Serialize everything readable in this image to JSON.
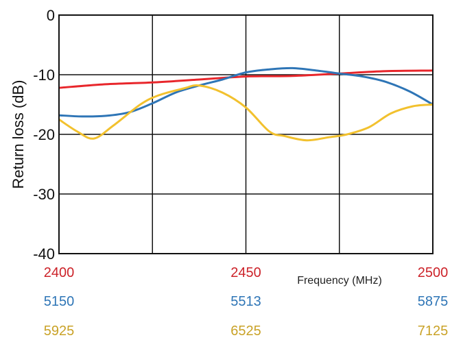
{
  "chart_data": {
    "type": "line",
    "ylabel": "Return loss (dB)",
    "xlabel": "Frequency (MHz)",
    "ylim": [
      -40,
      0
    ],
    "yticks": [
      "0",
      "-10",
      "-20",
      "-30",
      "-40"
    ],
    "ytick_values": [
      0,
      -10,
      -20,
      -30,
      -40
    ],
    "grid": true,
    "x_normalized_note_hidden": false,
    "x_scales": [
      {
        "labels": [
          "2400",
          "2450",
          "2500"
        ],
        "color": "#cc2229"
      },
      {
        "labels": [
          "5150",
          "5513",
          "5875"
        ],
        "color": "#2e75b6"
      },
      {
        "labels": [
          "5925",
          "6525",
          "7125"
        ],
        "color": "#c9a227"
      }
    ],
    "series": [
      {
        "color": "#e8262b",
        "x": [
          2400,
          2412.5,
          2425,
          2437.5,
          2450,
          2462.5,
          2475,
          2487.5,
          2500
        ],
        "y": [
          -12.2,
          -11.6,
          -11.3,
          -10.8,
          -10.3,
          -10.2,
          -9.8,
          -9.4,
          -9.3
        ]
      },
      {
        "color": "#2e75b6",
        "x": [
          5150,
          5195,
          5240,
          5286,
          5331,
          5376,
          5422,
          5467,
          5513,
          5558,
          5603,
          5649,
          5694,
          5739,
          5784,
          5830,
          5875
        ],
        "y": [
          -16.8,
          -17.0,
          -16.9,
          -16.3,
          -14.8,
          -13.0,
          -11.8,
          -10.8,
          -9.6,
          -9.1,
          -8.9,
          -9.3,
          -9.8,
          -10.3,
          -11.2,
          -12.8,
          -15.0
        ]
      },
      {
        "color": "#f2c12e",
        "x": [
          5925,
          5983,
          6037,
          6100,
          6186,
          6243,
          6325,
          6375,
          6450,
          6525,
          6600,
          6650,
          6720,
          6790,
          6850,
          6920,
          6990,
          7060,
          7125
        ],
        "y": [
          -17.5,
          -19.5,
          -20.7,
          -18.5,
          -15.0,
          -13.5,
          -12.3,
          -11.8,
          -13.0,
          -15.5,
          -19.5,
          -20.3,
          -21.0,
          -20.5,
          -20.0,
          -18.8,
          -16.5,
          -15.3,
          -15.0
        ]
      }
    ]
  }
}
